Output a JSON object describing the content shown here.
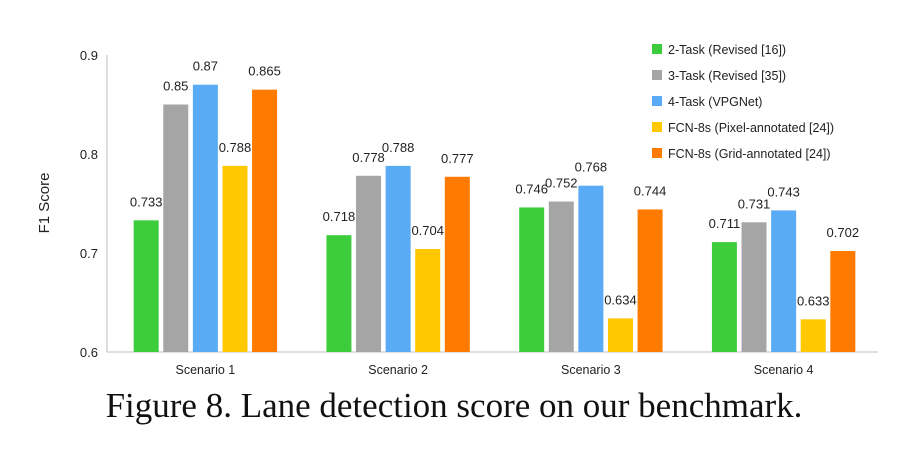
{
  "caption": "Figure 8. Lane detection score on our benchmark.",
  "chart_data": {
    "type": "bar",
    "title": "",
    "xlabel": "",
    "ylabel": "F1 Score",
    "ylim": [
      0.6,
      0.9
    ],
    "yticks": [
      "0.6",
      "0.7",
      "0.8",
      "0.9"
    ],
    "grid": false,
    "legend_position": "top-right",
    "categories": [
      "Scenario 1",
      "Scenario 2",
      "Scenario 3",
      "Scenario 4"
    ],
    "series": [
      {
        "name": "2-Task (Revised [16])",
        "color": "#3ccc3c",
        "values": [
          0.733,
          0.718,
          0.746,
          0.711
        ],
        "labels": [
          "0.733",
          "0.718",
          "0.746",
          "0.711"
        ]
      },
      {
        "name": "3-Task (Revised [35])",
        "color": "#a5a5a5",
        "values": [
          0.85,
          0.778,
          0.752,
          0.731
        ],
        "labels": [
          "0.85",
          "0.778",
          "0.752",
          "0.731"
        ]
      },
      {
        "name": "4-Task (VPGNet)",
        "color": "#5aabf5",
        "values": [
          0.87,
          0.788,
          0.768,
          0.743
        ],
        "labels": [
          "0.87",
          "0.788",
          "0.768",
          "0.743"
        ]
      },
      {
        "name": "FCN-8s (Pixel-annotated [24])",
        "color": "#ffc800",
        "values": [
          0.788,
          0.704,
          0.634,
          0.633
        ],
        "labels": [
          "0.788",
          "0.704",
          "0.634",
          "0.633"
        ]
      },
      {
        "name": "FCN-8s (Grid-annotated [24])",
        "color": "#ff7a00",
        "values": [
          0.865,
          0.777,
          0.744,
          0.702
        ],
        "labels": [
          "0.865",
          "0.777",
          "0.744",
          "0.702"
        ]
      }
    ]
  }
}
